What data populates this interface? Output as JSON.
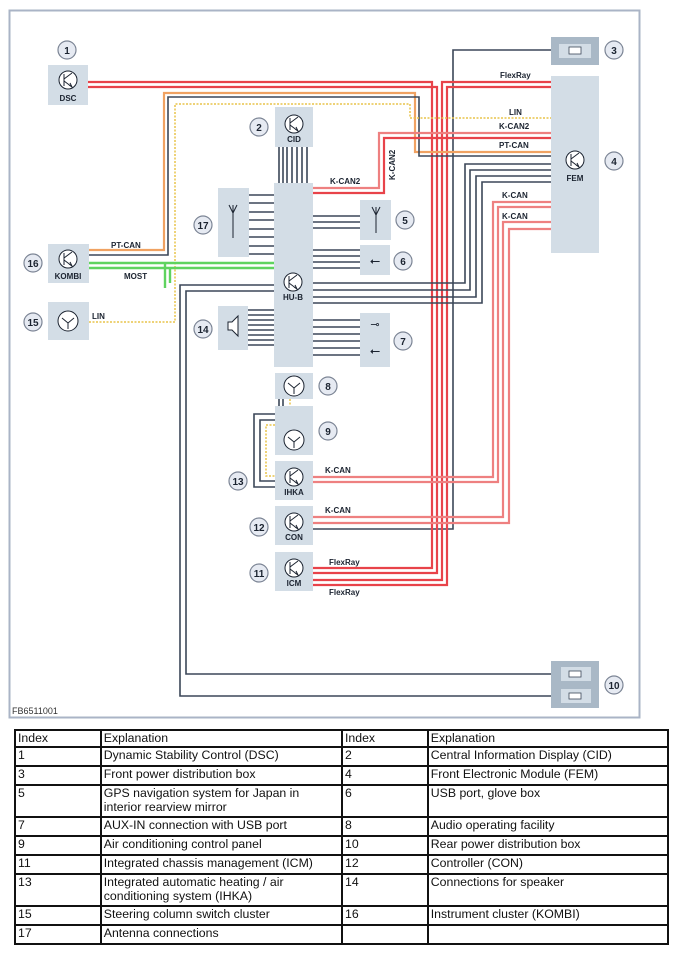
{
  "diagram": {
    "figure_id": "FB6511001",
    "modules": {
      "dsc": "DSC",
      "cid": "CID",
      "fem": "FEM",
      "hub": "HU-B",
      "kombi": "KOMBI",
      "ihka": "IHKA",
      "con": "CON",
      "icm": "ICM"
    },
    "numbers": [
      "1",
      "2",
      "3",
      "4",
      "5",
      "6",
      "7",
      "8",
      "9",
      "10",
      "11",
      "12",
      "13",
      "14",
      "15",
      "16",
      "17"
    ],
    "wire_labels": {
      "flexray_fem": "FlexRay",
      "lin_fem": "LIN",
      "kcan2_fem": "K-CAN2",
      "ptcan_fem": "PT-CAN",
      "kcan_fem_1": "K-CAN",
      "kcan_fem_2": "K-CAN",
      "kcan2_hub": "K-CAN2",
      "kcan2_vertical": "K-CAN2",
      "ptcan_kombi": "PT-CAN",
      "most_kombi": "MOST",
      "lin_switch": "LIN",
      "kcan_ihka": "K-CAN",
      "kcan_con": "K-CAN",
      "flexray_icm_1": "FlexRay",
      "flexray_icm_2": "FlexRay"
    },
    "colors": {
      "flexray": "#e8434a",
      "kcan": "#ee8080",
      "ptcan": "#f0a262",
      "most": "#5fd35f",
      "lin": "#e8c44a",
      "power": "#3b4758",
      "module": "#d3dde6"
    }
  },
  "table": {
    "headers": [
      "Index",
      "Explanation",
      "Index",
      "Explanation"
    ],
    "rows": [
      [
        "1",
        "Dynamic Stability Control (DSC)",
        "2",
        "Central Information Display (CID)"
      ],
      [
        "3",
        "Front power distribution box",
        "4",
        "Front Electronic Module (FEM)"
      ],
      [
        "5",
        "GPS navigation system for Japan in interior rearview mirror",
        "6",
        "USB port, glove box"
      ],
      [
        "7",
        "AUX-IN connection with USB port",
        "8",
        "Audio operating facility"
      ],
      [
        "9",
        "Air conditioning control panel",
        "10",
        "Rear power distribution box"
      ],
      [
        "11",
        "Integrated chassis management (ICM)",
        "12",
        "Controller (CON)"
      ],
      [
        "13",
        "Integrated automatic heating / air conditioning system (IHKA)",
        "14",
        "Connections for speaker"
      ],
      [
        "15",
        "Steering column switch cluster",
        "16",
        "Instrument cluster (KOMBI)"
      ],
      [
        "17",
        "Antenna connections",
        "",
        ""
      ]
    ]
  }
}
